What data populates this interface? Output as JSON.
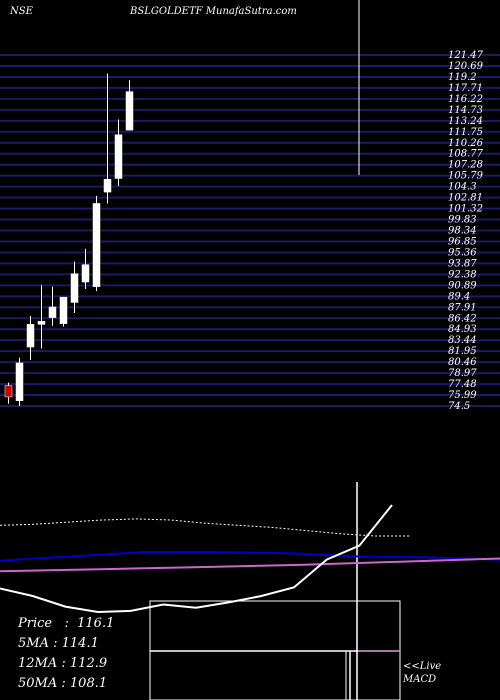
{
  "header": {
    "exchange": "NSE",
    "title": "BSLGOLDETF MunafaSutra.com"
  },
  "chart_data": {
    "type": "candlestick",
    "ylim": [
      74.5,
      121.47
    ],
    "price_levels": [
      "121.47",
      "120.69",
      "119.2",
      "117.71",
      "116.22",
      "114.73",
      "113.24",
      "111.75",
      "110.26",
      "108.77",
      "107.28",
      "105.79",
      "104.3",
      "102.81",
      "101.32",
      "99.83",
      "98.34",
      "96.85",
      "95.36",
      "93.87",
      "92.38",
      "90.89",
      "89.4",
      "87.91",
      "86.42",
      "84.93",
      "83.44",
      "81.95",
      "80.46",
      "78.97",
      "77.48",
      "75.99",
      "74.5"
    ],
    "candles": [
      {
        "open": 75.7,
        "high": 77.6,
        "low": 74.8,
        "close": 77.2,
        "color": "red"
      },
      {
        "open": 75.2,
        "high": 80.9,
        "low": 74.5,
        "close": 80.2,
        "color": "white"
      },
      {
        "open": 82.3,
        "high": 86.4,
        "low": 80.6,
        "close": 85.3,
        "color": "white"
      },
      {
        "open": 85.3,
        "high": 90.5,
        "low": 82.1,
        "close": 85.7,
        "color": "white"
      },
      {
        "open": 86.2,
        "high": 90.3,
        "low": 85.1,
        "close": 87.6,
        "color": "white"
      },
      {
        "open": 85.4,
        "high": 88.5,
        "low": 85.0,
        "close": 88.9,
        "color": "white"
      },
      {
        "open": 88.2,
        "high": 93.6,
        "low": 86.8,
        "close": 92.0,
        "color": "white"
      },
      {
        "open": 90.9,
        "high": 95.3,
        "low": 90.0,
        "close": 93.2,
        "color": "white"
      },
      {
        "open": 101.3,
        "high": 102.3,
        "low": 89.7,
        "close": 90.3,
        "color": "white"
      },
      {
        "open": 102.8,
        "high": 118.5,
        "low": 101.3,
        "close": 104.5,
        "color": "white"
      },
      {
        "open": 104.6,
        "high": 112.4,
        "low": 103.6,
        "close": 110.4,
        "color": "white"
      },
      {
        "open": 116.1,
        "high": 117.6,
        "low": 111.0,
        "close": 111.0,
        "color": "white"
      }
    ],
    "lower_series": [
      {
        "color": "#ffffff",
        "values": [
          0.22,
          0.15,
          0.05,
          0.0,
          0.01,
          0.07,
          0.04,
          0.09,
          0.15,
          0.23,
          0.49,
          0.62,
          1.0
        ]
      },
      {
        "color": "#0000cc",
        "values": [
          0.48,
          0.52,
          0.56,
          0.56,
          0.55,
          0.52,
          0.51,
          0.49
        ]
      },
      {
        "color": "#cc66cc",
        "values": [
          0.38,
          0.4,
          0.42,
          0.44,
          0.47,
          0.5
        ]
      }
    ],
    "ma_lines": [
      "#ffffff",
      "#0000cc",
      "#cc66cc",
      "#ffffff"
    ]
  },
  "info": [
    {
      "label": "Price",
      "value": "116.1"
    },
    {
      "label": "5MA",
      "value": "114.1"
    },
    {
      "label": "12MA",
      "value": "112.9"
    },
    {
      "label": "50MA",
      "value": "108.1"
    }
  ],
  "macd": {
    "live": "<<Live",
    "label": "MACD"
  },
  "colors": {
    "background": "#000000",
    "grid": "#1a1a66",
    "up": "#ffffff",
    "down": "#cc0000",
    "blue": "#0000cc",
    "magenta": "#cc66cc"
  }
}
